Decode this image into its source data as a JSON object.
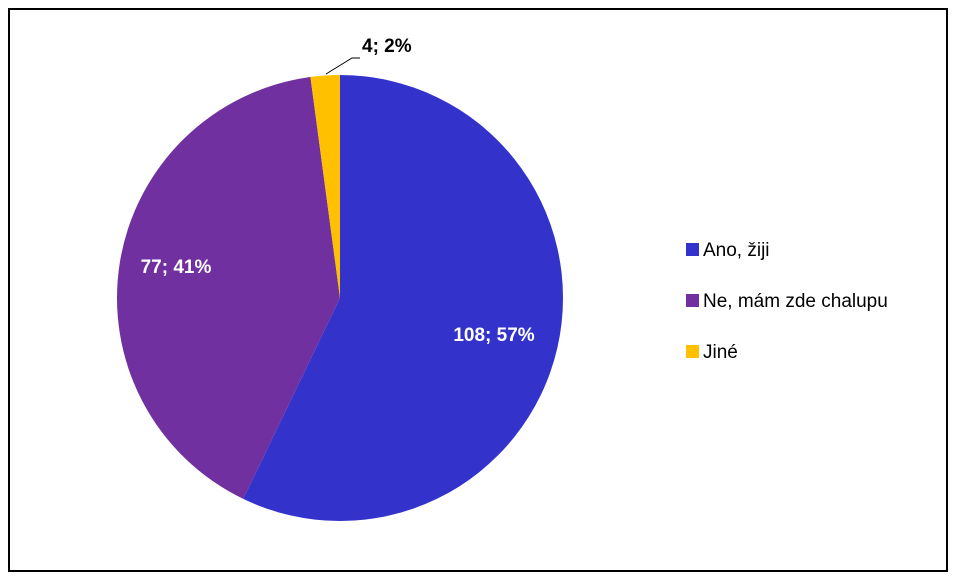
{
  "chart_data": {
    "type": "pie",
    "categories": [
      "Ano, žiji",
      "Ne, mám zde chalupu",
      "Jiné"
    ],
    "values": [
      108,
      77,
      4
    ],
    "percentages": [
      57,
      41,
      2
    ],
    "data_labels": [
      "108; 57%",
      "77; 41%",
      "4; 2%"
    ],
    "colors": [
      "#3333CC",
      "#7030A0",
      "#FFC000"
    ],
    "label_colors": [
      "#FFFFFF",
      "#FFFFFF",
      "#000000"
    ],
    "legend_placement": "right",
    "start_angle": "12 o'clock",
    "direction": "clockwise"
  }
}
